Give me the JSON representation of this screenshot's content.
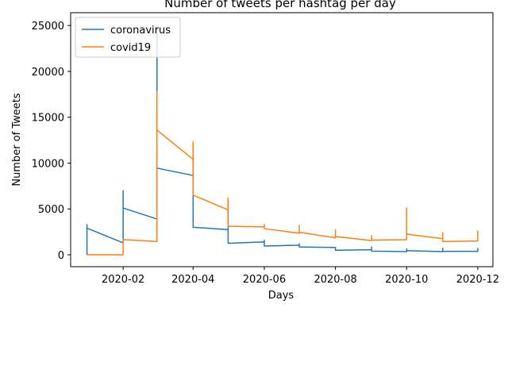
{
  "chart_data": {
    "type": "line",
    "title": "Number of tweets per hashtag per day",
    "xlabel": "Days",
    "ylabel": "Number of Tweets",
    "x_tick_labels": [
      "2020-02",
      "2020-04",
      "2020-06",
      "2020-08",
      "2020-10",
      "2020-12"
    ],
    "x_ticks": [
      "2020-02-01",
      "2020-04-01",
      "2020-06-01",
      "2020-08-01",
      "2020-10-01",
      "2020-12-01"
    ],
    "y_ticks": [
      0,
      5000,
      10000,
      15000,
      20000,
      25000
    ],
    "y_tick_labels": [
      "0",
      "5000",
      "10000",
      "15000",
      "20000",
      "25000"
    ],
    "xlim": [
      "2019-12-18",
      "2020-12-14"
    ],
    "ylim": [
      -1300,
      26400
    ],
    "grid": false,
    "legend_position": "top-left",
    "series": [
      {
        "name": "coronavirus",
        "color": "#1f77b4",
        "points": [
          [
            "2020-01-01",
            0
          ],
          [
            "2020-01-01",
            3300
          ],
          [
            "2020-01-01",
            2900
          ],
          [
            "2020-02-01",
            1300
          ],
          [
            "2020-02-01",
            7000
          ],
          [
            "2020-02-01",
            5100
          ],
          [
            "2020-03-01",
            3900
          ],
          [
            "2020-03-01",
            25000
          ],
          [
            "2020-03-01",
            18000
          ],
          [
            "2020-03-01",
            9450
          ],
          [
            "2020-04-01",
            8650
          ],
          [
            "2020-04-01",
            12000
          ],
          [
            "2020-04-01",
            3000
          ],
          [
            "2020-05-01",
            2750
          ],
          [
            "2020-05-01",
            6000
          ],
          [
            "2020-05-01",
            1250
          ],
          [
            "2020-06-01",
            1400
          ],
          [
            "2020-06-01",
            1600
          ],
          [
            "2020-06-01",
            950
          ],
          [
            "2020-07-01",
            1050
          ],
          [
            "2020-07-01",
            1200
          ],
          [
            "2020-07-01",
            850
          ],
          [
            "2020-08-01",
            800
          ],
          [
            "2020-08-01",
            500
          ],
          [
            "2020-09-01",
            550
          ],
          [
            "2020-09-01",
            850
          ],
          [
            "2020-09-01",
            400
          ],
          [
            "2020-10-01",
            350
          ],
          [
            "2020-10-01",
            650
          ],
          [
            "2020-10-01",
            450
          ],
          [
            "2020-11-01",
            350
          ],
          [
            "2020-11-01",
            700
          ],
          [
            "2020-11-01",
            380
          ],
          [
            "2020-12-01",
            380
          ],
          [
            "2020-12-01",
            700
          ],
          [
            "2020-12-01",
            400
          ]
        ]
      },
      {
        "name": "covid19",
        "color": "#ff7f0e",
        "points": [
          [
            "2020-01-01",
            0
          ],
          [
            "2020-02-01",
            0
          ],
          [
            "2020-02-01",
            1650
          ],
          [
            "2020-03-01",
            1450
          ],
          [
            "2020-03-01",
            17800
          ],
          [
            "2020-03-01",
            13600
          ],
          [
            "2020-04-01",
            10400
          ],
          [
            "2020-04-01",
            12300
          ],
          [
            "2020-04-01",
            6500
          ],
          [
            "2020-05-01",
            4900
          ],
          [
            "2020-05-01",
            6200
          ],
          [
            "2020-05-01",
            3100
          ],
          [
            "2020-06-01",
            3050
          ],
          [
            "2020-06-01",
            3300
          ],
          [
            "2020-06-01",
            2850
          ],
          [
            "2020-07-01",
            2350
          ],
          [
            "2020-07-01",
            3200
          ],
          [
            "2020-07-01",
            2450
          ],
          [
            "2020-08-01",
            1850
          ],
          [
            "2020-08-01",
            2700
          ],
          [
            "2020-08-01",
            2000
          ],
          [
            "2020-09-01",
            1550
          ],
          [
            "2020-09-01",
            2100
          ],
          [
            "2020-09-01",
            1600
          ],
          [
            "2020-10-01",
            1650
          ],
          [
            "2020-10-01",
            5100
          ],
          [
            "2020-10-01",
            2250
          ],
          [
            "2020-11-01",
            1750
          ],
          [
            "2020-11-01",
            2400
          ],
          [
            "2020-11-01",
            1450
          ],
          [
            "2020-12-01",
            1500
          ],
          [
            "2020-12-01",
            2600
          ],
          [
            "2020-12-01",
            1600
          ]
        ]
      }
    ]
  }
}
